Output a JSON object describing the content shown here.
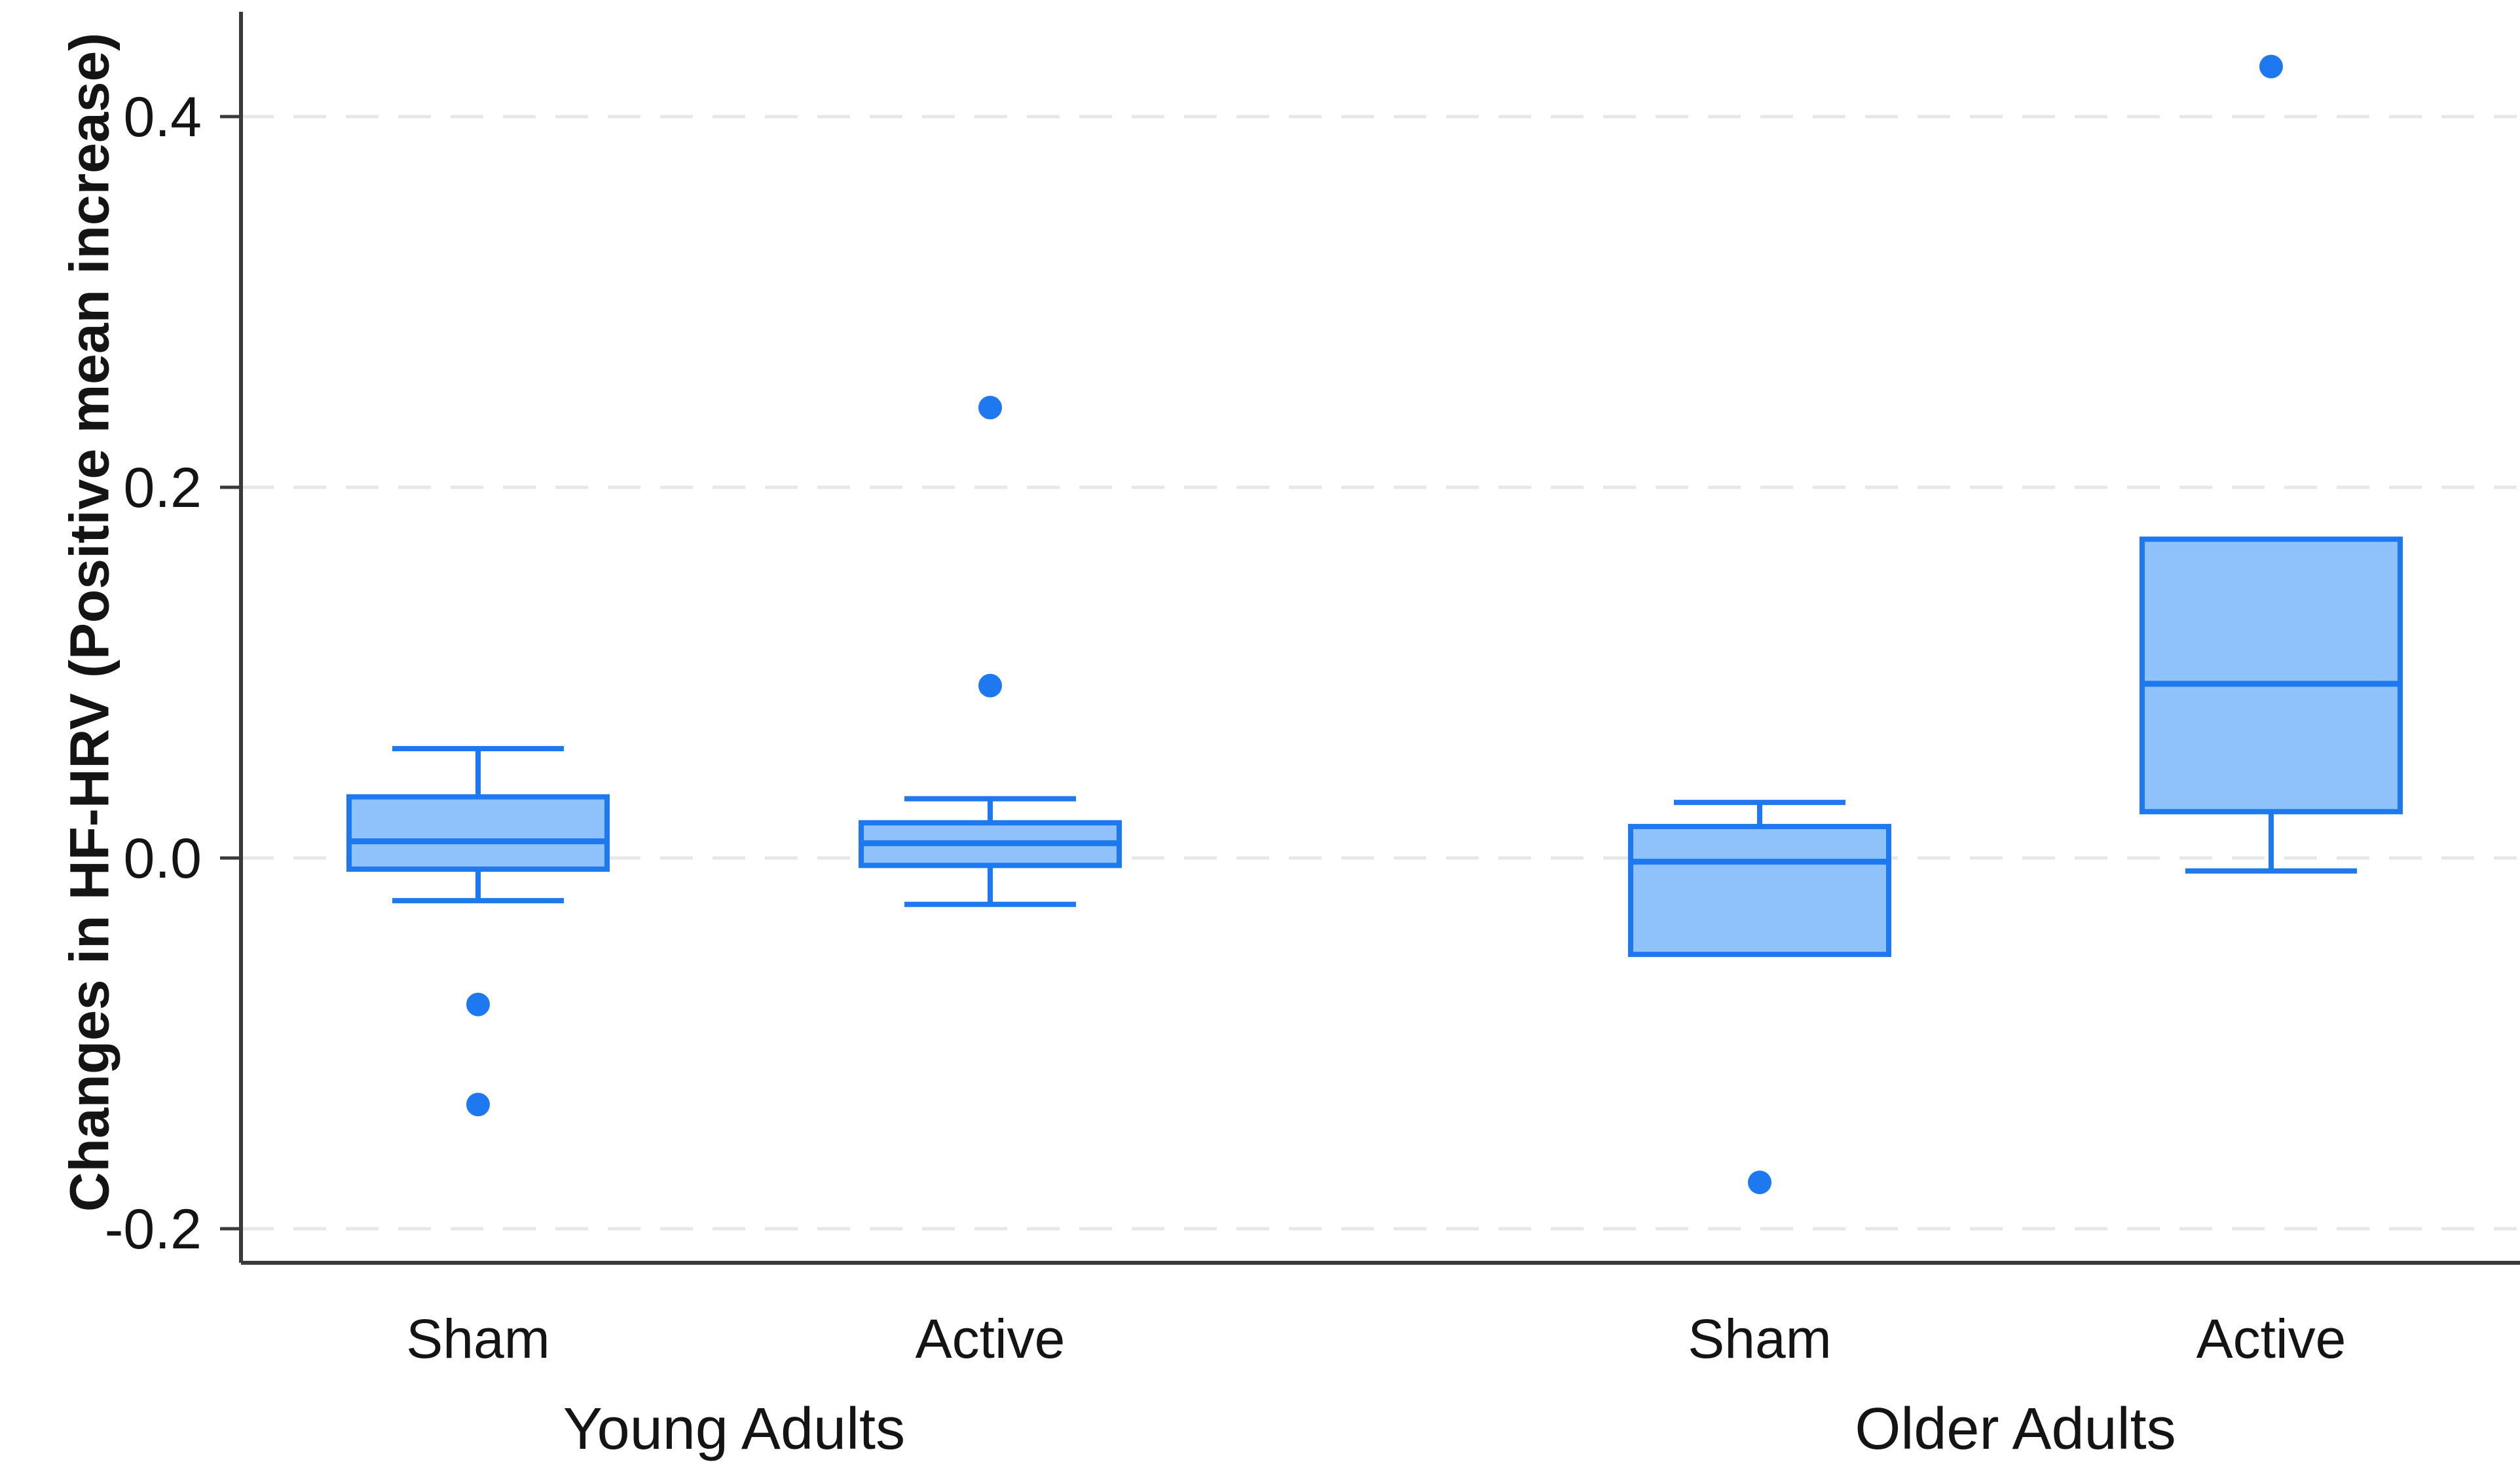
{
  "chart_data": {
    "type": "boxplot",
    "title": "",
    "xlabel": "",
    "ylabel": "Changes in HF-HRV (Positive mean increase)",
    "ylim": [
      -0.225,
      0.456
    ],
    "yticks": [
      0.4,
      0.2,
      0.0,
      -0.2
    ],
    "ytick_labels": [
      "0.4",
      "0.2",
      "0.0",
      "-0.2"
    ],
    "grid": "horizontal dashed lines at each y tick",
    "legend": "none",
    "groups": [
      {
        "label": "Young Adults",
        "boxes": [
          {
            "label": "Sham",
            "whisker_low": -0.023,
            "q1": -0.006,
            "median": 0.009,
            "q3": 0.033,
            "whisker_high": 0.059,
            "outliers": [
              -0.079,
              -0.133
            ]
          },
          {
            "label": "Active",
            "whisker_low": -0.025,
            "q1": -0.004,
            "median": 0.008,
            "q3": 0.019,
            "whisker_high": 0.032,
            "outliers": [
              0.093,
              0.243
            ]
          }
        ]
      },
      {
        "label": "Older Adults",
        "boxes": [
          {
            "label": "Sham",
            "whisker_low": -0.052,
            "q1": -0.052,
            "median": -0.002,
            "q3": 0.017,
            "whisker_high": 0.03,
            "outliers": [
              -0.175
            ]
          },
          {
            "label": "Active",
            "whisker_low": -0.007,
            "q1": 0.025,
            "median": 0.094,
            "q3": 0.172,
            "whisker_high": 0.172,
            "outliers": [
              0.427
            ]
          }
        ]
      }
    ],
    "colors": {
      "box_fill": "#8fc2fb",
      "box_stroke": "#1e78f0",
      "outlier": "#1e78f0",
      "axis": "#3a3a3a",
      "gridline": "#e7e7e7",
      "text": "#141414"
    }
  }
}
